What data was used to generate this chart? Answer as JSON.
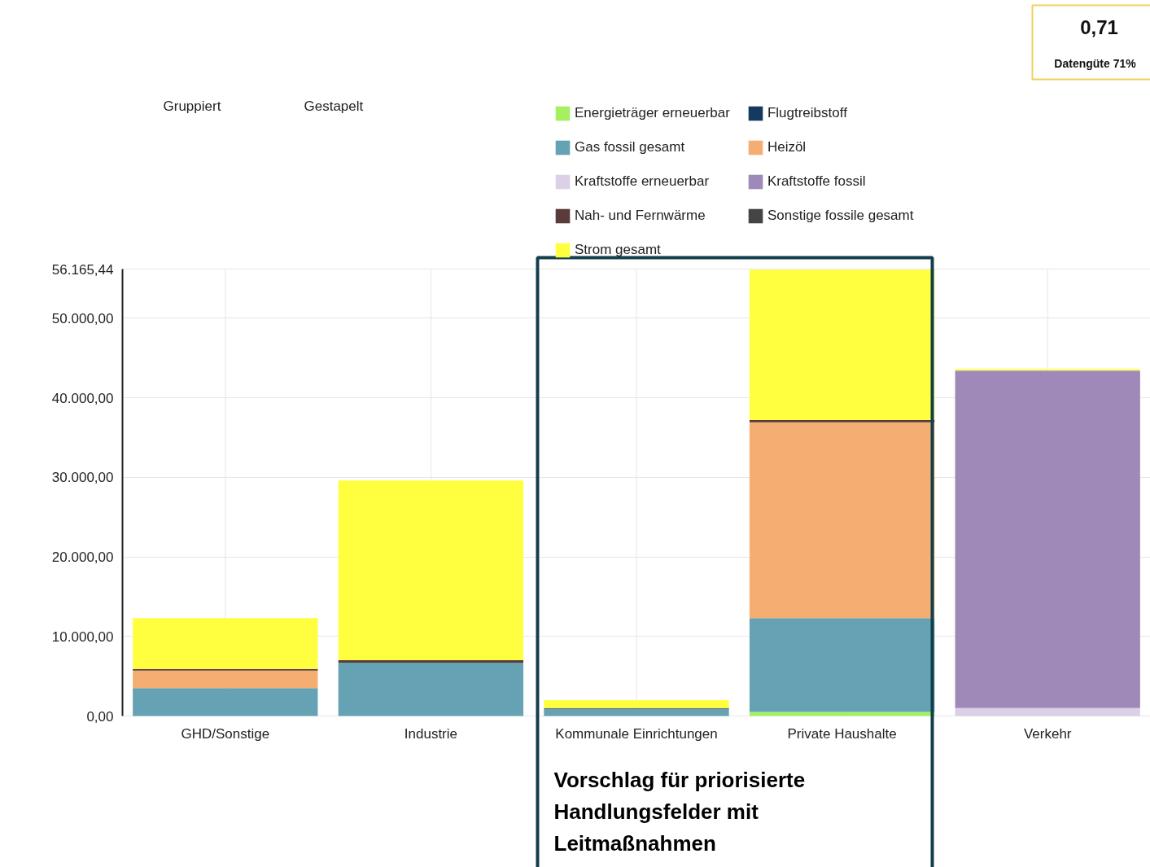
{
  "chart_data": {
    "type": "bar",
    "stacked": true,
    "categories": [
      "GHD/Sonstige",
      "Industrie",
      "Kommunale Einrichtungen",
      "Private Haushalte",
      "Verkehr"
    ],
    "series": [
      {
        "name": "Energieträger erneuerbar",
        "color": "#a4f060",
        "values": [
          0,
          0,
          0,
          500,
          0
        ]
      },
      {
        "name": "Kraftstoffe erneuerbar",
        "color": "#dcd0e6",
        "values": [
          0,
          0,
          0,
          0,
          1000
        ]
      },
      {
        "name": "Gas fossil gesamt",
        "color": "#64a2b4",
        "values": [
          3500,
          6700,
          900,
          11800,
          0
        ]
      },
      {
        "name": "Heizöl",
        "color": "#f5ae72",
        "values": [
          2200,
          0,
          0,
          24600,
          0
        ]
      },
      {
        "name": "Kraftstoffe fossil",
        "color": "#9f89b8",
        "values": [
          0,
          0,
          0,
          0,
          42400
        ]
      },
      {
        "name": "Nah- und Fernwärme",
        "color": "#5a3a3a",
        "values": [
          200,
          300,
          100,
          300,
          0
        ]
      },
      {
        "name": "Sonstige fossile gesamt",
        "color": "#444444",
        "values": [
          0,
          0,
          0,
          0,
          0
        ]
      },
      {
        "name": "Flugtreibstoff",
        "color": "#163a5f",
        "values": [
          0,
          0,
          0,
          0,
          0
        ]
      },
      {
        "name": "Strom gesamt",
        "color": "#ffff40",
        "values": [
          6400,
          22600,
          1000,
          18900,
          200
        ]
      }
    ],
    "ylim": [
      0,
      56165.44
    ],
    "yticks": [
      {
        "value": 0,
        "label": "0,00"
      },
      {
        "value": 10000,
        "label": "10.000,00"
      },
      {
        "value": 20000,
        "label": "20.000,00"
      },
      {
        "value": 30000,
        "label": "30.000,00"
      },
      {
        "value": 40000,
        "label": "40.000,00"
      },
      {
        "value": 50000,
        "label": "50.000,00"
      },
      {
        "value": 56165.44,
        "label": "56.165,44"
      }
    ],
    "grid": true,
    "legend": "top right",
    "annotations": [
      "Gruppiert",
      "Gestapelt",
      "0,71",
      "Datengüte 71%",
      "Vorschlag für priorisierte Handlungsfelder mit Leitmaßnahmen"
    ]
  }
}
